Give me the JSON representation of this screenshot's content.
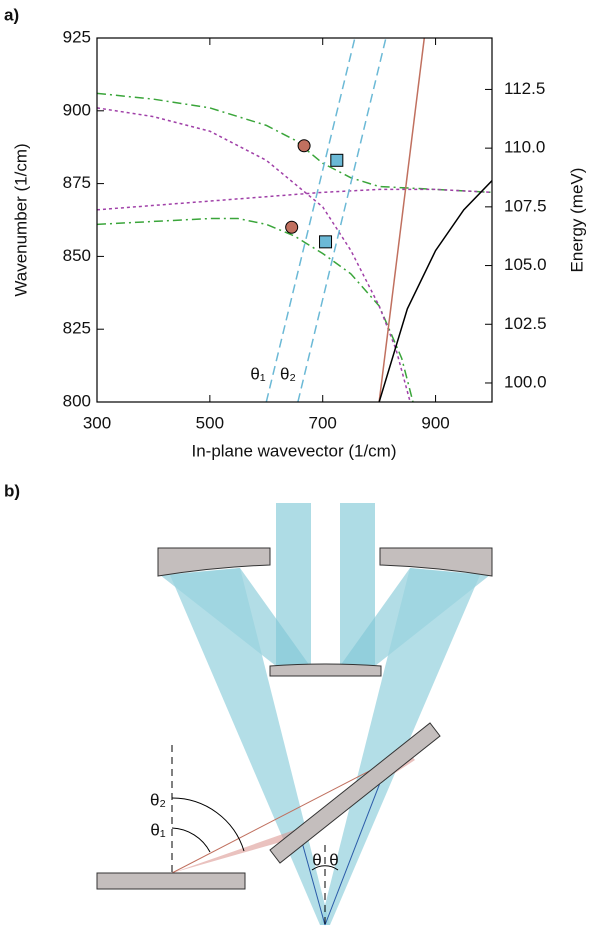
{
  "chart_data": {
    "type": "line",
    "panel_label": "a)",
    "xlabel": "In-plane wavevector (1/cm)",
    "ylabel": "Wavenumber (1/cm)",
    "y2label": "Energy (meV)",
    "xlim": [
      300,
      1000
    ],
    "ylim": [
      800,
      925
    ],
    "y2lim": [
      99.19,
      114.69
    ],
    "xticks": [
      300,
      500,
      700,
      900
    ],
    "yticks": [
      800,
      825,
      850,
      875,
      900,
      925
    ],
    "y2ticks": [
      {
        "value": 100,
        "label": "100.0"
      },
      102.5,
      {
        "value": 105,
        "label": "105.0"
      },
      107.5,
      {
        "value": 110,
        "label": "110.0"
      },
      112.5
    ],
    "series": [
      {
        "color": "#3aa53a",
        "style": "dashdot",
        "x": [
          300,
          400,
          500,
          600,
          650,
          700,
          750,
          800,
          900,
          1000
        ],
        "values": [
          906,
          904,
          901,
          895,
          890,
          882,
          877,
          874,
          873,
          872
        ]
      },
      {
        "color": "#3aa53a",
        "style": "dashdot",
        "x": [
          300,
          400,
          500,
          550,
          600,
          650,
          700,
          750,
          800,
          840,
          860
        ],
        "values": [
          861,
          862,
          863,
          863,
          861,
          857,
          851,
          844,
          833,
          815,
          800
        ]
      },
      {
        "color": "#a040a8",
        "style": "dotted",
        "x": [
          300,
          400,
          500,
          600,
          650,
          700,
          750,
          800,
          830,
          855
        ],
        "values": [
          901,
          898,
          893,
          883,
          875,
          867,
          852,
          833,
          818,
          800
        ]
      },
      {
        "color": "#a040a8",
        "style": "dotted",
        "x": [
          300,
          500,
          700,
          800,
          900,
          1000
        ],
        "values": [
          866,
          869,
          872,
          873,
          873,
          872
        ]
      },
      {
        "color": "#6bb9d6",
        "style": "dashed",
        "x": [
          600,
          757
        ],
        "values": [
          800,
          925
        ]
      },
      {
        "color": "#6bb9d6",
        "style": "dashed",
        "x": [
          656,
          812
        ],
        "values": [
          800,
          925
        ]
      },
      {
        "color": "#c0705f",
        "style": "solid",
        "x": [
          800,
          880
        ],
        "values": [
          800,
          925
        ]
      },
      {
        "color": "#000000",
        "style": "solid",
        "x": [
          800,
          850,
          900,
          950,
          1000
        ],
        "values": [
          800,
          832,
          852,
          866,
          876
        ]
      }
    ],
    "markers": [
      {
        "shape": "circle",
        "color": "#c0705f",
        "x": [
          667,
          645
        ],
        "values": [
          888,
          860
        ]
      },
      {
        "shape": "square",
        "color": "#6bb9d6",
        "x": [
          725,
          705
        ],
        "values": [
          883,
          855
        ]
      }
    ],
    "annotations": [
      "θ₁",
      "θ₂"
    ]
  },
  "diagram": {
    "panel_label": "b)",
    "labels": [
      "θ₂",
      "θ₁",
      "θ",
      "θ"
    ]
  }
}
